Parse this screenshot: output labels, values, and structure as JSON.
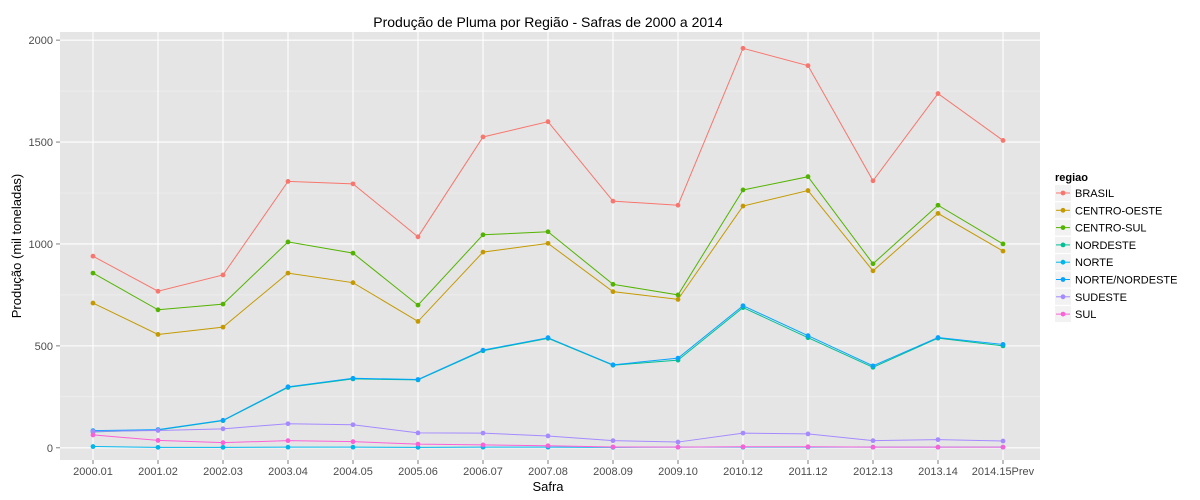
{
  "chart_data": {
    "type": "line",
    "title": "Produção de Pluma por Região - Safras de 2000 a 2014",
    "xlabel": "Safra",
    "ylabel": "Produção (mil toneladas)",
    "categories": [
      "2000.01",
      "2001.02",
      "2002.03",
      "2003.04",
      "2004.05",
      "2005.06",
      "2006.07",
      "2007.08",
      "2008.09",
      "2009.10",
      "2010.12",
      "2011.12",
      "2012.13",
      "2013.14",
      "2014.15Prev"
    ],
    "yticks": [
      0,
      500,
      1000,
      1500,
      2000
    ],
    "ytick_labels": [
      "0",
      "500",
      "1000",
      "1500",
      "2000"
    ],
    "ylim": [
      -60,
      2040
    ],
    "grid": true,
    "legend_title": "regiao",
    "legend_position": "right",
    "series": [
      {
        "name": "BRASIL",
        "color": "#F8766D",
        "values": [
          940,
          768,
          848,
          1307,
          1295,
          1035,
          1525,
          1600,
          1210,
          1190,
          1960,
          1875,
          1310,
          1738,
          1508
        ]
      },
      {
        "name": "CENTRO-OESTE",
        "color": "#C49A00",
        "values": [
          710,
          556,
          592,
          857,
          810,
          620,
          960,
          1003,
          766,
          728,
          1186,
          1262,
          868,
          1150,
          965
        ]
      },
      {
        "name": "CENTRO-SUL",
        "color": "#53B400",
        "values": [
          857,
          677,
          705,
          1010,
          955,
          700,
          1045,
          1060,
          802,
          750,
          1265,
          1330,
          903,
          1190,
          1000
        ]
      },
      {
        "name": "NORDESTE",
        "color": "#00C094",
        "values": [
          78,
          87,
          133,
          296,
          338,
          333,
          476,
          537,
          405,
          430,
          688,
          540,
          395,
          538,
          500
        ]
      },
      {
        "name": "NORTE",
        "color": "#00B6EB",
        "values": [
          6,
          2,
          2,
          3,
          3,
          2,
          3,
          3,
          2,
          3,
          3,
          3,
          3,
          3,
          3
        ]
      },
      {
        "name": "NORTE/NORDESTE",
        "color": "#06A4FF",
        "values": [
          84,
          89,
          135,
          299,
          341,
          335,
          479,
          540,
          407,
          440,
          697,
          550,
          402,
          541,
          507
        ]
      },
      {
        "name": "SUDESTE",
        "color": "#A58AFF",
        "values": [
          80,
          85,
          93,
          118,
          113,
          73,
          72,
          58,
          35,
          28,
          72,
          68,
          35,
          40,
          33
        ]
      },
      {
        "name": "SUL",
        "color": "#FB61D7",
        "values": [
          63,
          36,
          25,
          35,
          30,
          18,
          14,
          10,
          4,
          3,
          5,
          5,
          3,
          3,
          3
        ]
      }
    ]
  }
}
